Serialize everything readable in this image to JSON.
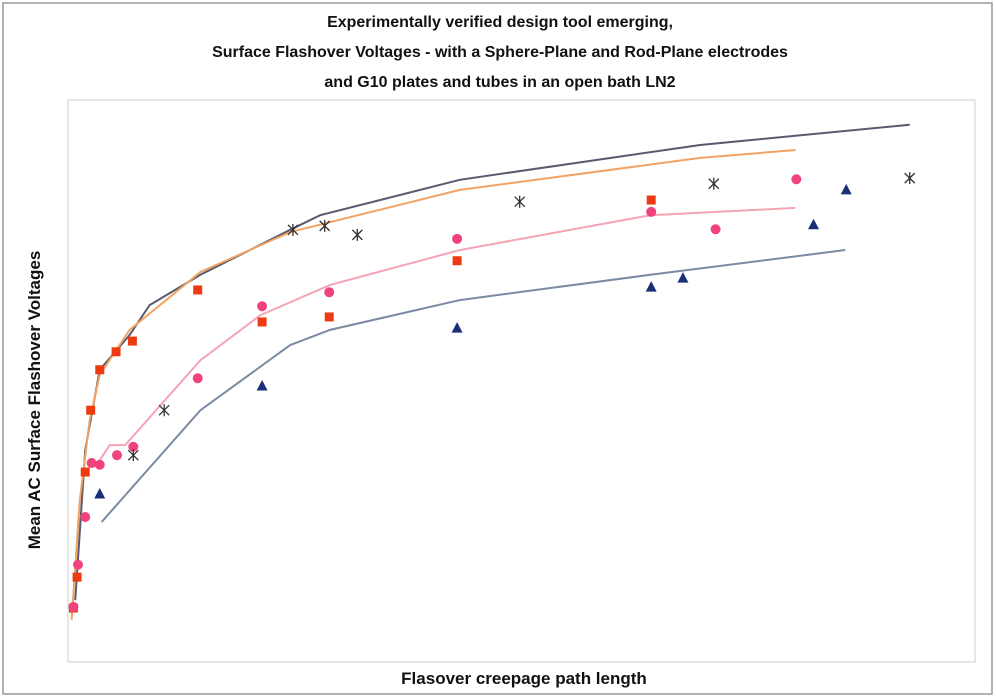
{
  "chart_data": {
    "type": "scatter",
    "title": [
      "Experimentally verified design tool emerging,",
      "Surface Flashover Voltages - with a Sphere-Plane and Rod-Plane electrodes",
      "and G10 plates and tubes in an open bath LN2"
    ],
    "x_label": "Flasover creepage path length",
    "y_label": "Mean AC Surface Flashover  Voltages",
    "xlim": [
      0,
      100
    ],
    "ylim": [
      0,
      100
    ],
    "series": [
      {
        "marker": "line",
        "color": "#565b70",
        "x": [
          0.8,
          1.9,
          3.5,
          6.8,
          9.0,
          14.6,
          24.5,
          27.8,
          43.2,
          69.7,
          92.8
        ],
        "values": [
          11.0,
          37.7,
          52.0,
          58.2,
          63.5,
          68.9,
          76.9,
          79.5,
          85.8,
          92.0,
          95.6
        ]
      },
      {
        "marker": "line",
        "color": "#f2a262",
        "x": [
          0.4,
          1.3,
          2.4,
          3.5,
          6.8,
          14.6,
          24.5,
          43.2,
          69.7,
          80.2
        ],
        "values": [
          7.5,
          28.8,
          43.1,
          51.1,
          59.1,
          69.4,
          76.5,
          84.0,
          89.7,
          91.1
        ]
      },
      {
        "marker": "line",
        "color": "#f4a4b4",
        "x": [
          3.5,
          4.6,
          6.3,
          14.6,
          21.2,
          28.9,
          43.2,
          64.2,
          80.2
        ],
        "values": [
          35.9,
          38.6,
          38.6,
          53.7,
          61.7,
          67.1,
          73.3,
          79.5,
          80.8
        ]
      },
      {
        "marker": "line",
        "color": "#7a8aa2",
        "x": [
          3.7,
          14.6,
          24.5,
          28.9,
          43.2,
          64.2,
          85.7
        ],
        "values": [
          24.9,
          44.8,
          56.4,
          59.1,
          64.4,
          68.9,
          73.3
        ]
      },
      {
        "marker": "square",
        "color": "#ee3a12",
        "x": [
          0.6,
          1.0,
          1.9,
          2.5,
          3.5,
          5.3,
          7.1,
          14.3,
          21.4,
          28.8,
          42.9,
          64.3
        ],
        "values": [
          9.6,
          15.1,
          33.8,
          44.8,
          52.0,
          55.2,
          57.1,
          66.2,
          60.5,
          61.4,
          71.4,
          82.2
        ]
      },
      {
        "marker": "circle",
        "color": "#f0437c",
        "x": [
          0.6,
          1.1,
          1.9,
          2.6,
          3.5,
          5.4,
          7.2,
          14.3,
          21.4,
          28.8,
          42.9,
          64.3,
          71.4,
          80.3
        ],
        "values": [
          9.8,
          17.3,
          25.8,
          35.4,
          35.1,
          36.8,
          38.3,
          50.5,
          63.3,
          65.8,
          75.3,
          80.1,
          77.0,
          85.9
        ]
      },
      {
        "marker": "triangle",
        "color": "#1b2f78",
        "x": [
          3.5,
          21.4,
          42.9,
          64.3,
          67.8,
          82.2,
          85.8
        ],
        "values": [
          29.9,
          49.1,
          59.4,
          66.7,
          68.3,
          77.8,
          84.0
        ]
      },
      {
        "marker": "asterisk",
        "color": "#333333",
        "x": [
          7.2,
          10.6,
          24.8,
          28.3,
          31.9,
          49.8,
          71.2,
          92.8
        ],
        "values": [
          36.8,
          44.8,
          76.9,
          77.6,
          76.0,
          81.9,
          85.1,
          86.1
        ]
      }
    ]
  }
}
